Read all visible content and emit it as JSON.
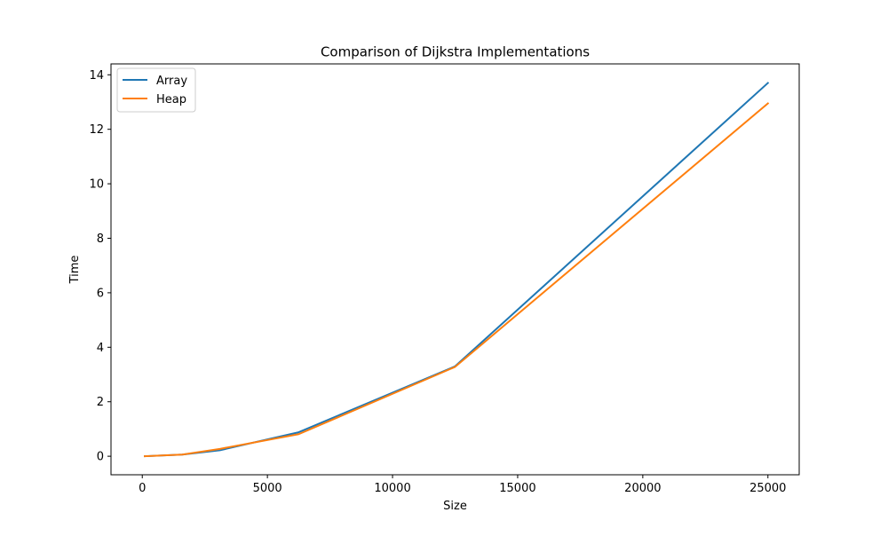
{
  "chart_data": {
    "type": "line",
    "title": "Comparison of Dijkstra Implementations",
    "xlabel": "Size",
    "ylabel": "Time",
    "xlim": [
      -1250,
      26250
    ],
    "ylim": [
      -0.68,
      14.4
    ],
    "xticks": [
      0,
      5000,
      10000,
      15000,
      20000,
      25000
    ],
    "xtick_labels": [
      "0",
      "5000",
      "10000",
      "15000",
      "20000",
      "25000"
    ],
    "yticks": [
      0,
      2,
      4,
      6,
      8,
      10,
      12,
      14
    ],
    "ytick_labels": [
      "0",
      "2",
      "4",
      "6",
      "8",
      "10",
      "12",
      "14"
    ],
    "grid": false,
    "legend_position": "top-left",
    "x": [
      100,
      1600,
      3100,
      6250,
      12500,
      25000
    ],
    "series": [
      {
        "name": "Array",
        "color": "#1f77b4",
        "values": [
          0.0,
          0.06,
          0.22,
          0.88,
          3.3,
          13.7
        ]
      },
      {
        "name": "Heap",
        "color": "#ff7f0e",
        "values": [
          0.0,
          0.06,
          0.27,
          0.81,
          3.28,
          12.95
        ]
      }
    ]
  }
}
